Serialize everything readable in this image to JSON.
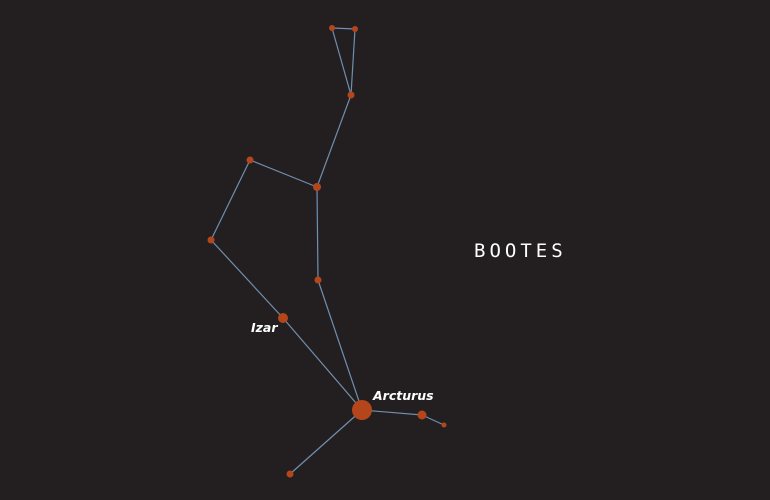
{
  "title": "BOOTES",
  "colors": {
    "background": "#231f20",
    "line": "#6f8fb0",
    "star": "#b5461b",
    "text": "#ffffff"
  },
  "labels": {
    "izar": "Izar",
    "arcturus": "Arcturus"
  }
}
